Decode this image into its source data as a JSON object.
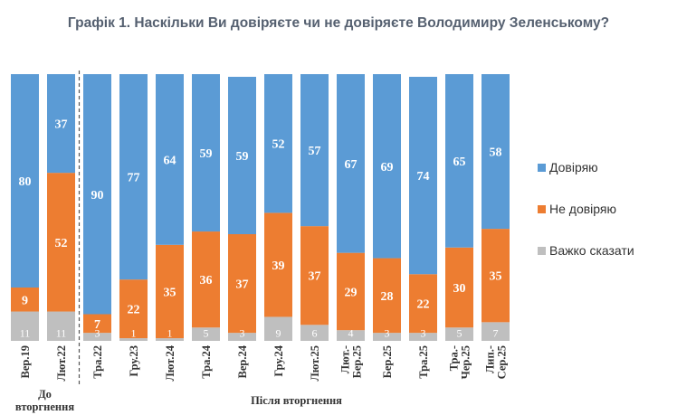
{
  "chart_data": {
    "type": "bar",
    "stacked": true,
    "percent": true,
    "title": "Графік 1. Наскільки Ви довіряєте чи не довіряєте Володимиру Зеленському?",
    "categories": [
      [
        "Вер.19"
      ],
      [
        "Лют.22"
      ],
      [
        "Тра.22"
      ],
      [
        "Гру.23"
      ],
      [
        "Лют.24"
      ],
      [
        "Тра.24"
      ],
      [
        "Вер.24"
      ],
      [
        "Гру.24"
      ],
      [
        "Лют.25"
      ],
      [
        "Лют.-",
        "Бер.25"
      ],
      [
        "Бер.25"
      ],
      [
        "Тра.25"
      ],
      [
        "Тра.-",
        "Чер.25"
      ],
      [
        "Лип.-",
        "Сер.25"
      ]
    ],
    "series": [
      {
        "name": "Важко сказати",
        "color": "#BFBFBF",
        "values": [
          11,
          11,
          3,
          1,
          1,
          5,
          3,
          9,
          6,
          4,
          3,
          3,
          5,
          7
        ]
      },
      {
        "name": "Не довіряю",
        "color": "#ED7D31",
        "values": [
          9,
          52,
          7,
          22,
          35,
          36,
          37,
          39,
          37,
          29,
          28,
          22,
          30,
          35
        ]
      },
      {
        "name": "Довіряю",
        "color": "#5B9BD5",
        "values": [
          80,
          37,
          90,
          77,
          64,
          59,
          59,
          52,
          57,
          67,
          69,
          74,
          65,
          58
        ]
      }
    ],
    "legend_order": [
      "Довіряю",
      "Не довіряю",
      "Важко сказати"
    ],
    "legend_position": "right",
    "groups": [
      {
        "label": [
          "До",
          "вторгнення"
        ],
        "from": 0,
        "to": 1
      },
      {
        "label": [
          "Після вторгнення"
        ],
        "from": 2,
        "to": 13
      }
    ],
    "divider_after_index": 1
  }
}
